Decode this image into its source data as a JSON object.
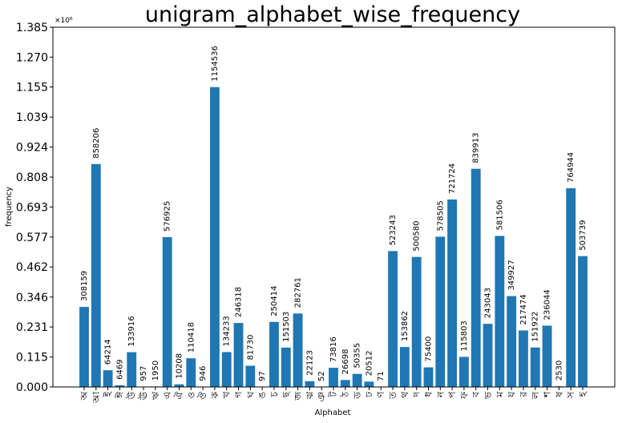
{
  "colors": {
    "bar": "#1f77b4",
    "axis": "#000000",
    "background": "#ffffff"
  },
  "chart_data": {
    "type": "bar",
    "title": "unigram_alphabet_wise_frequency",
    "xlabel": "Alphabet",
    "ylabel": "frequency",
    "y_multiplier_label": "×10⁶",
    "ylim": [
      0,
      1.385
    ],
    "y_ticks": [
      "0.000",
      "0.115",
      "0.231",
      "0.346",
      "0.462",
      "0.577",
      "0.693",
      "0.808",
      "0.924",
      "1.039",
      "1.155",
      "1.270",
      "1.385"
    ],
    "grid": false,
    "legend": "none",
    "categories": [
      "অ",
      "আ",
      "ই",
      "ঈ",
      "উ",
      "ঊ",
      "ঋ",
      "এ",
      "ঐ",
      "ও",
      "ঔ",
      "ক",
      "খ",
      "গ",
      "ঘ",
      "ঙ",
      "চ",
      "ছ",
      "জ",
      "ঝ",
      "ঞ",
      "ট",
      "ঠ",
      "ড",
      "ঢ",
      "ণ",
      "ত",
      "থ",
      "দ",
      "ধ",
      "ন",
      "প",
      "ফ",
      "ব",
      "ভ",
      "ম",
      "য",
      "র",
      "ল",
      "শ",
      "ষ",
      "স",
      "হ"
    ],
    "values": [
      308159,
      858206,
      64214,
      6469,
      133916,
      957,
      1950,
      576925,
      10208,
      110418,
      946,
      1154536,
      134233,
      246318,
      81730,
      97,
      250414,
      151503,
      282761,
      22123,
      52,
      73816,
      26698,
      50355,
      20512,
      71,
      523243,
      153862,
      500580,
      75400,
      578505,
      721724,
      115803,
      839913,
      243043,
      581506,
      349927,
      217474,
      151922,
      236044,
      2530,
      764944,
      503739
    ],
    "data_labels": [
      "308159",
      "858206",
      "64214",
      "6469",
      "133916",
      "957",
      "1950",
      "576925",
      "10208",
      "110418",
      "946",
      "1154536",
      "134233",
      "246318",
      "81730",
      "97",
      "250414",
      "151503",
      "282761",
      "22123",
      "52",
      "73816",
      "26698",
      "50355",
      "20512",
      "71",
      "523243",
      "153862",
      "500580",
      "75400",
      "578505",
      "721724",
      "115803",
      "839913",
      "243043",
      "581506",
      "349927",
      "217474",
      "151922",
      "236044",
      "2530",
      "764944",
      "503739"
    ]
  }
}
